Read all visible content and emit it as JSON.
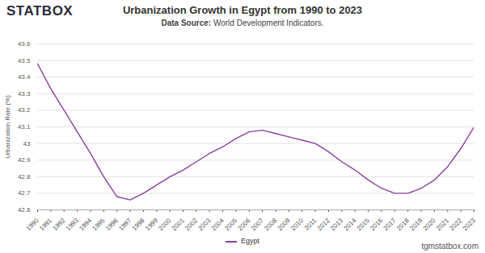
{
  "chart_data": {
    "type": "line",
    "logo": "STATBOX",
    "title": "Urbanization Growth in Egypt from 1990 to 2023",
    "subtitle_label": "Data Source:",
    "subtitle": "World Development Indicators.",
    "source_site": "tgmstatbox.com",
    "y_label": "Urbanization Rate (%)",
    "x": [
      1990,
      1991,
      1992,
      1993,
      1994,
      1995,
      1996,
      1997,
      1998,
      1999,
      2000,
      2001,
      2002,
      2003,
      2004,
      2005,
      2006,
      2007,
      2008,
      2009,
      2010,
      2011,
      2012,
      2013,
      2014,
      2015,
      2016,
      2017,
      2018,
      2019,
      2020,
      2021,
      2022,
      2023
    ],
    "series": [
      {
        "name": "Egypt",
        "color": "#8b3f9e",
        "values": [
          43.48,
          43.33,
          43.2,
          43.07,
          42.94,
          42.8,
          42.68,
          42.66,
          42.7,
          42.75,
          42.8,
          42.84,
          42.89,
          42.94,
          42.98,
          43.03,
          43.07,
          43.08,
          43.06,
          43.04,
          43.02,
          43.0,
          42.95,
          42.89,
          42.84,
          42.78,
          42.73,
          42.7,
          42.7,
          42.73,
          42.78,
          42.86,
          42.97,
          43.1
        ]
      }
    ],
    "xlim": [
      1990,
      2023
    ],
    "xticks": [
      1990,
      1991,
      1992,
      1993,
      1994,
      1995,
      1996,
      1997,
      1998,
      1999,
      2000,
      2001,
      2002,
      2003,
      2004,
      2005,
      2006,
      2007,
      2008,
      2009,
      2010,
      2011,
      2012,
      2013,
      2014,
      2015,
      2016,
      2017,
      2018,
      2019,
      2020,
      2021,
      2022,
      2023
    ],
    "ylim": [
      42.6,
      43.6
    ],
    "yticks": [
      42.6,
      42.7,
      42.8,
      42.9,
      43,
      43.1,
      43.2,
      43.3,
      43.4,
      43.5,
      43.6
    ],
    "grid": true,
    "legend": "bottom"
  }
}
